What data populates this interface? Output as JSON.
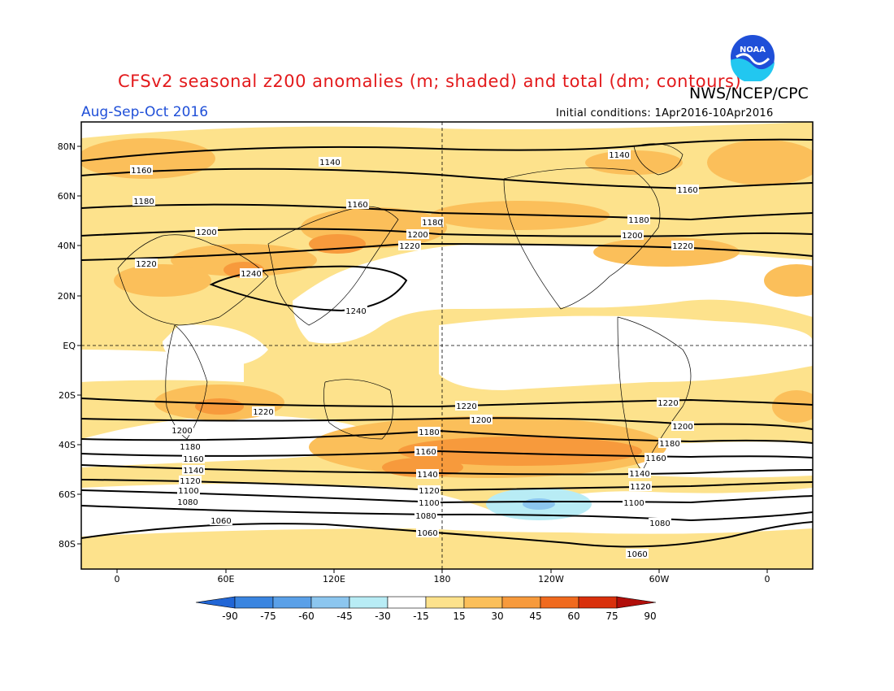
{
  "title": "CFSv2 seasonal z200 anomalies (m; shaded) and total (dm; contours)",
  "org": "NWS/NCEP/CPC",
  "logo_text": "NOAA",
  "period": "Aug-Sep-Oct 2016",
  "initial_conditions": "Initial conditions: 1Apr2016-10Apr2016",
  "lat_labels": [
    "80N",
    "60N",
    "40N",
    "20N",
    "EQ",
    "20S",
    "40S",
    "60S",
    "80S"
  ],
  "lon_labels": [
    "0",
    "60E",
    "120E",
    "180",
    "120W",
    "60W",
    "0"
  ],
  "colorbar": {
    "labels": [
      "-90",
      "-75",
      "-60",
      "-45",
      "-30",
      "-15",
      "15",
      "30",
      "45",
      "60",
      "75",
      "90"
    ],
    "colors": [
      "#2166d6",
      "#3a85e0",
      "#5aa0e8",
      "#8cc6ef",
      "#b8ecf5",
      "#ffffff",
      "#fde28c",
      "#fbbf5a",
      "#f79a3c",
      "#f06a1e",
      "#d9300c",
      "#b10e0a"
    ]
  },
  "shade_colors": {
    "c15": "#fde28c",
    "c30": "#fbbf5a",
    "c45": "#f79a3c",
    "cneg15": "#b8ecf5",
    "cneg30": "#8cc6ef"
  },
  "contour_labels": {
    "c1140n": "1140",
    "c1160n": "1160",
    "c1180n": "1180",
    "c1200n": "1200",
    "c1220n": "1220",
    "c1240": "1240",
    "c1220s": "1220",
    "c1200s": "1200",
    "c1180s": "1180",
    "c1160s": "1160",
    "c1140s": "1140",
    "c1120s": "1120",
    "c1100s": "1100",
    "c1080s": "1080",
    "c1060s": "1060"
  }
}
